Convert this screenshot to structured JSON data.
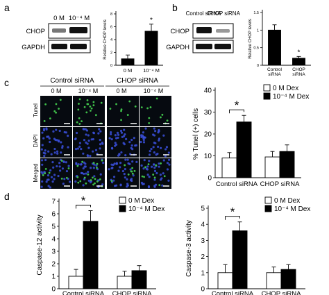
{
  "panel_a": {
    "letter": "a",
    "blot": {
      "lanes": [
        "0 M",
        "10⁻⁴ M"
      ],
      "rows": [
        "CHOP",
        "GAPDH"
      ]
    },
    "chart_data": {
      "type": "bar",
      "categories": [
        "0 M",
        "10⁻⁴ M"
      ],
      "values": [
        1.0,
        5.3
      ],
      "errors": [
        0.6,
        1.1
      ],
      "ylabel": "Relative CHOP levels",
      "ylim": [
        0,
        8
      ],
      "yticks": [
        0,
        2,
        4,
        6,
        8
      ],
      "bar_fill": [
        "#000000",
        "#000000"
      ],
      "annotations": [
        {
          "category": "10⁻⁴ M",
          "text": "*"
        }
      ]
    }
  },
  "panel_b": {
    "letter": "b",
    "blot": {
      "lanes": [
        "Control siRNA",
        "CHOP siRNA"
      ],
      "rows": [
        "CHOP",
        "GAPDH"
      ]
    },
    "chart_data": {
      "type": "bar",
      "categories": [
        "Control siRNA",
        "CHOP siRNA"
      ],
      "values": [
        1.0,
        0.2
      ],
      "errors": [
        0.15,
        0.05
      ],
      "ylabel": "Relative CHOP levels",
      "ylim": [
        0,
        1.5
      ],
      "yticks": [
        0,
        0.5,
        1.0,
        1.5
      ],
      "bar_fill": [
        "#000000",
        "#000000"
      ],
      "annotations": [
        {
          "category": "CHOP siRNA",
          "text": "*"
        }
      ]
    }
  },
  "panel_c": {
    "letter": "c",
    "groups": [
      "Control siRNA",
      "CHOP siRNA"
    ],
    "columns": [
      "0 M",
      "10⁻⁴ M",
      "0 M",
      "10⁻⁴ M"
    ],
    "rows": [
      "Tunel",
      "DAPI",
      "Merged"
    ],
    "colors": {
      "tunel": "#3fbf4a",
      "dapi": "#3a4fd9",
      "background": "#060a10"
    },
    "chart_data": {
      "type": "bar",
      "categories": [
        "Control siRNA",
        "CHOP siRNA"
      ],
      "series": [
        {
          "name": "0 M Dex",
          "values": [
            9,
            9.5
          ],
          "errors": [
            2.5,
            2.5
          ],
          "fill": "#ffffff"
        },
        {
          "name": "10⁻⁴ M Dex",
          "values": [
            25.5,
            12
          ],
          "errors": [
            3,
            3
          ],
          "fill": "#000000"
        }
      ],
      "ylabel": "% Tunel  (+) cells",
      "ylim": [
        0,
        40
      ],
      "yticks": [
        0,
        10,
        20,
        30,
        40
      ],
      "legend": "top-right",
      "annotations": [
        {
          "text": "*",
          "bracket": "Control siRNA"
        }
      ]
    }
  },
  "panel_d": {
    "letter": "d",
    "charts": [
      {
        "type": "bar",
        "categories": [
          "Control siRNA",
          "CHOP siRNA"
        ],
        "series": [
          {
            "name": "0 M Dex",
            "values": [
              1.0,
              1.0
            ],
            "errors": [
              0.55,
              0.4
            ],
            "fill": "#ffffff"
          },
          {
            "name": "10⁻⁴ M Dex",
            "values": [
              5.4,
              1.45
            ],
            "errors": [
              0.85,
              0.4
            ],
            "fill": "#000000"
          }
        ],
        "ylabel": "Caspase-12 activity",
        "ylim": [
          0,
          7
        ],
        "yticks": [
          0,
          1,
          2,
          3,
          4,
          5,
          6,
          7
        ],
        "legend": "top-right",
        "annotations": [
          {
            "text": "*",
            "bracket": "Control siRNA"
          }
        ]
      },
      {
        "type": "bar",
        "categories": [
          "Control siRNA",
          "CHOP siRNA"
        ],
        "series": [
          {
            "name": "0 M Dex",
            "values": [
              1.0,
              1.0
            ],
            "errors": [
              0.5,
              0.35
            ],
            "fill": "#ffffff"
          },
          {
            "name": "10⁻⁴ M Dex",
            "values": [
              3.6,
              1.2
            ],
            "errors": [
              0.55,
              0.3
            ],
            "fill": "#000000"
          }
        ],
        "ylabel": "Caspase-3 activity",
        "ylim": [
          0,
          5
        ],
        "yticks": [
          0,
          1,
          2,
          3,
          4,
          5
        ],
        "legend": "top-right",
        "annotations": [
          {
            "text": "*",
            "bracket": "Control siRNA"
          }
        ]
      }
    ]
  }
}
